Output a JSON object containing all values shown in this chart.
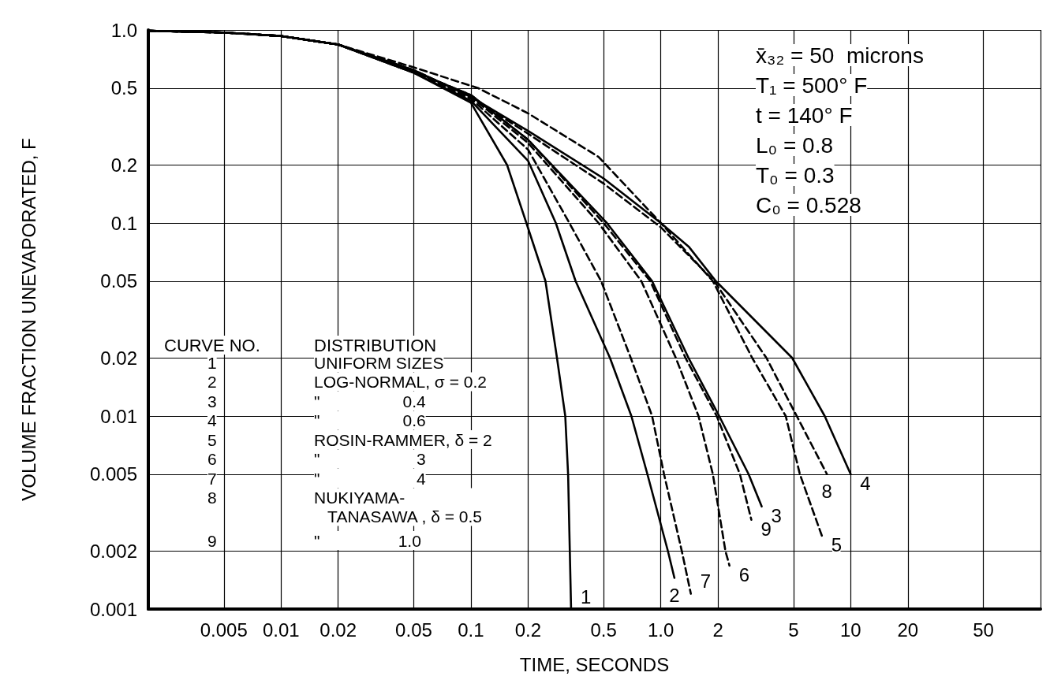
{
  "chart_data": {
    "type": "line",
    "xlabel": "TIME, SECONDS",
    "ylabel": "VOLUME FRACTION UNEVAPORATED, F",
    "log": "xy",
    "grid": true,
    "marker": "none",
    "xlim": [
      0.002,
      100
    ],
    "ylim": [
      0.001,
      1
    ],
    "xticks": [
      0.005,
      0.01,
      0.02,
      0.05,
      0.1,
      0.2,
      0.5,
      {
        "value": 1,
        "label": "1.0"
      },
      2,
      5,
      10,
      20,
      50,
      {
        "value": 100,
        "label": null
      }
    ],
    "yticks": [
      0.001,
      0.002,
      0.005,
      0.01,
      0.02,
      0.05,
      0.1,
      0.2,
      0.5,
      {
        "value": 1,
        "label": "1.0"
      }
    ],
    "series": [
      {
        "name": "1",
        "color": "#000000",
        "line_style": "solid",
        "x": [
          0.002,
          0.005,
          0.01,
          0.02,
          0.05,
          0.1,
          0.155,
          0.196,
          0.247,
          0.284,
          0.314,
          0.325,
          0.337
        ],
        "values": [
          0.99,
          0.97,
          0.93,
          0.84,
          0.6,
          0.42,
          0.2,
          0.1,
          0.05,
          0.02,
          0.01,
          0.005,
          0.001
        ]
      },
      {
        "name": "2",
        "color": "#000000",
        "line_style": "solid",
        "x": [
          0.002,
          0.005,
          0.01,
          0.02,
          0.05,
          0.1,
          0.2,
          0.28,
          0.356,
          0.54,
          0.7,
          0.85,
          1.09,
          1.18
        ],
        "values": [
          0.99,
          0.97,
          0.93,
          0.84,
          0.6,
          0.43,
          0.21,
          0.1,
          0.05,
          0.02,
          0.01,
          0.005,
          0.002,
          0.00145
        ]
      },
      {
        "name": "3",
        "color": "#000000",
        "line_style": "solid",
        "x": [
          0.002,
          0.005,
          0.01,
          0.02,
          0.05,
          0.1,
          0.2,
          0.52,
          0.9,
          1.4,
          2.03,
          2.9,
          3.4
        ],
        "values": [
          0.99,
          0.97,
          0.93,
          0.84,
          0.61,
          0.46,
          0.27,
          0.1,
          0.05,
          0.02,
          0.01,
          0.005,
          0.0034
        ]
      },
      {
        "name": "4",
        "color": "#000000",
        "line_style": "solid",
        "x": [
          0.002,
          0.005,
          0.01,
          0.02,
          0.05,
          0.1,
          0.2,
          0.5,
          1,
          1.41,
          1.95,
          4.92,
          7.3,
          10
        ],
        "values": [
          0.99,
          0.97,
          0.93,
          0.84,
          0.62,
          0.45,
          0.3,
          0.17,
          0.1,
          0.075,
          0.05,
          0.02,
          0.01,
          0.005
        ]
      },
      {
        "name": "5",
        "color": "#000000",
        "line_style": "dashed",
        "x": [
          0.002,
          0.005,
          0.01,
          0.02,
          0.05,
          0.109,
          0.2,
          0.47,
          1,
          1.88,
          3.03,
          4.55,
          5.4,
          7.05
        ],
        "values": [
          0.99,
          0.97,
          0.93,
          0.84,
          0.64,
          0.5,
          0.37,
          0.22,
          0.1,
          0.05,
          0.02,
          0.01,
          0.005,
          0.0024
        ]
      },
      {
        "name": "6",
        "color": "#000000",
        "line_style": "dashed",
        "x": [
          0.002,
          0.005,
          0.01,
          0.02,
          0.05,
          0.1,
          0.2,
          0.47,
          0.79,
          1.2,
          1.58,
          1.88,
          2.19,
          2.3
        ],
        "values": [
          0.99,
          0.97,
          0.93,
          0.84,
          0.61,
          0.45,
          0.26,
          0.1,
          0.05,
          0.02,
          0.01,
          0.005,
          0.002,
          0.00168
        ]
      },
      {
        "name": "7",
        "color": "#000000",
        "line_style": "dashed",
        "x": [
          0.002,
          0.005,
          0.01,
          0.02,
          0.05,
          0.1,
          0.2,
          0.33,
          0.485,
          0.695,
          0.9,
          1.04,
          1.29,
          1.44
        ],
        "values": [
          0.99,
          0.97,
          0.93,
          0.84,
          0.6,
          0.44,
          0.24,
          0.1,
          0.05,
          0.02,
          0.01,
          0.005,
          0.002,
          0.0012
        ]
      },
      {
        "name": "8",
        "color": "#000000",
        "line_style": "dashed",
        "x": [
          0.002,
          0.005,
          0.01,
          0.02,
          0.05,
          0.1,
          0.2,
          0.5,
          1,
          1.91,
          3.6,
          5.2,
          7.5
        ],
        "values": [
          0.99,
          0.97,
          0.93,
          0.84,
          0.62,
          0.45,
          0.29,
          0.16,
          0.095,
          0.05,
          0.02,
          0.01,
          0.005
        ]
      },
      {
        "name": "9",
        "color": "#000000",
        "line_style": "dashed",
        "x": [
          0.002,
          0.005,
          0.01,
          0.02,
          0.05,
          0.1,
          0.2,
          0.5,
          0.88,
          1.35,
          1.97,
          2.61,
          3.0
        ],
        "values": [
          0.99,
          0.97,
          0.93,
          0.84,
          0.61,
          0.46,
          0.27,
          0.1,
          0.05,
          0.02,
          0.01,
          0.005,
          0.0029
        ]
      }
    ],
    "annotations": [
      "CURVE NO.",
      "DISTRIBUTION",
      "1",
      "UNIFORM SIZES",
      "2",
      "LOG-NORMAL, σ = 0.2",
      "3",
      "\"                  0.4",
      "4",
      "\"                  0.6",
      "5",
      "ROSIN-RAMMER, δ = 2",
      "6",
      "\"                     3",
      "7",
      "\"                     4",
      "8",
      "NUKIYAMA-\n   TANASAWA , δ = 0.5",
      "9",
      "\"                 1.0",
      "x̄₃₂ = 50  microns",
      "T₁ = 500° F",
      "t = 140° F",
      "L₀ = 0.8",
      "T₀ = 0.3",
      "C₀ = 0.528"
    ]
  }
}
